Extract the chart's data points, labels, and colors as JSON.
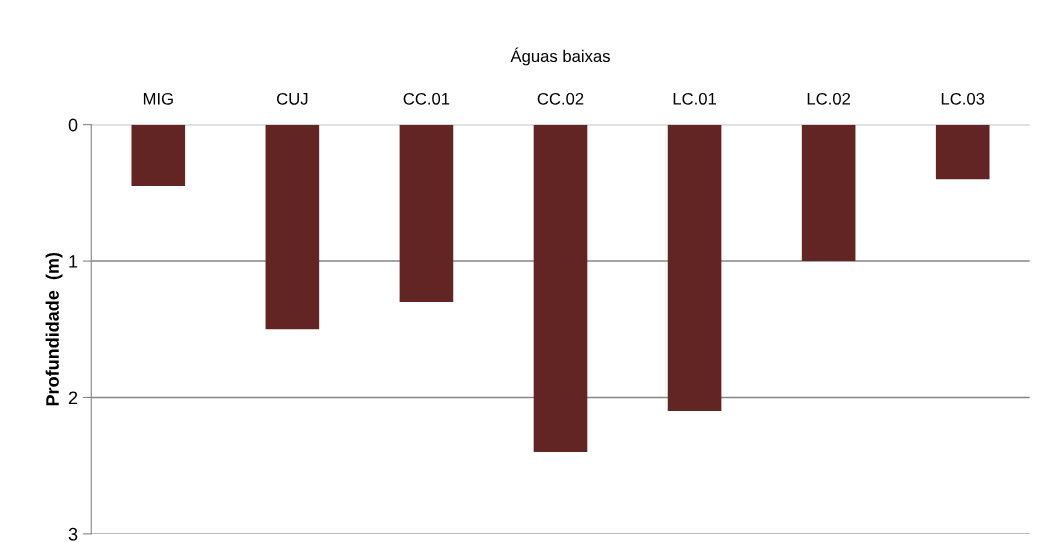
{
  "chart_data": {
    "type": "bar",
    "xlabel": "Águas baixas",
    "ylabel": "Profundidade  (m)",
    "categories": [
      "MIG",
      "CUJ",
      "CC.01",
      "CC.02",
      "LC.01",
      "LC.02",
      "LC.03"
    ],
    "values": [
      0.45,
      1.5,
      1.3,
      2.4,
      2.1,
      1.0,
      0.4
    ],
    "color": "#632523",
    "ylim": [
      3,
      0
    ],
    "yticks": [
      0,
      1,
      2,
      3
    ],
    "grid": "y",
    "legend": false
  }
}
